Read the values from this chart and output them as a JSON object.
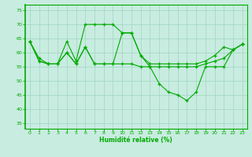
{
  "hours": [
    0,
    1,
    2,
    3,
    4,
    5,
    6,
    7,
    8,
    9,
    10,
    11,
    12,
    13,
    14,
    15,
    16,
    17,
    18,
    19,
    20,
    21,
    22,
    23
  ],
  "series1": [
    64,
    58,
    56,
    56,
    64,
    57,
    70,
    70,
    70,
    70,
    67,
    67,
    59,
    56,
    56,
    56,
    56,
    56,
    56,
    57,
    59,
    62,
    61,
    63
  ],
  "series2": [
    64,
    57,
    56,
    56,
    60,
    56,
    62,
    56,
    56,
    56,
    56,
    56,
    55,
    55,
    55,
    55,
    55,
    55,
    55,
    56,
    57,
    58,
    61,
    63
  ],
  "series3": [
    64,
    57,
    56,
    56,
    60,
    56,
    62,
    56,
    56,
    56,
    67,
    67,
    59,
    55,
    49,
    46,
    45,
    43,
    46,
    55,
    55,
    55,
    61,
    63
  ],
  "bg_color": "#c8ece0",
  "grid_color": "#a0d4c4",
  "line_color": "#00aa00",
  "xlabel": "Humidité relative (%)",
  "ylim": [
    33,
    77
  ],
  "xlim": [
    -0.5,
    23.5
  ],
  "yticks": [
    35,
    40,
    45,
    50,
    55,
    60,
    65,
    70,
    75
  ],
  "xticks": [
    0,
    1,
    2,
    3,
    4,
    5,
    6,
    7,
    8,
    9,
    10,
    11,
    12,
    13,
    14,
    15,
    16,
    17,
    18,
    19,
    20,
    21,
    22,
    23
  ]
}
